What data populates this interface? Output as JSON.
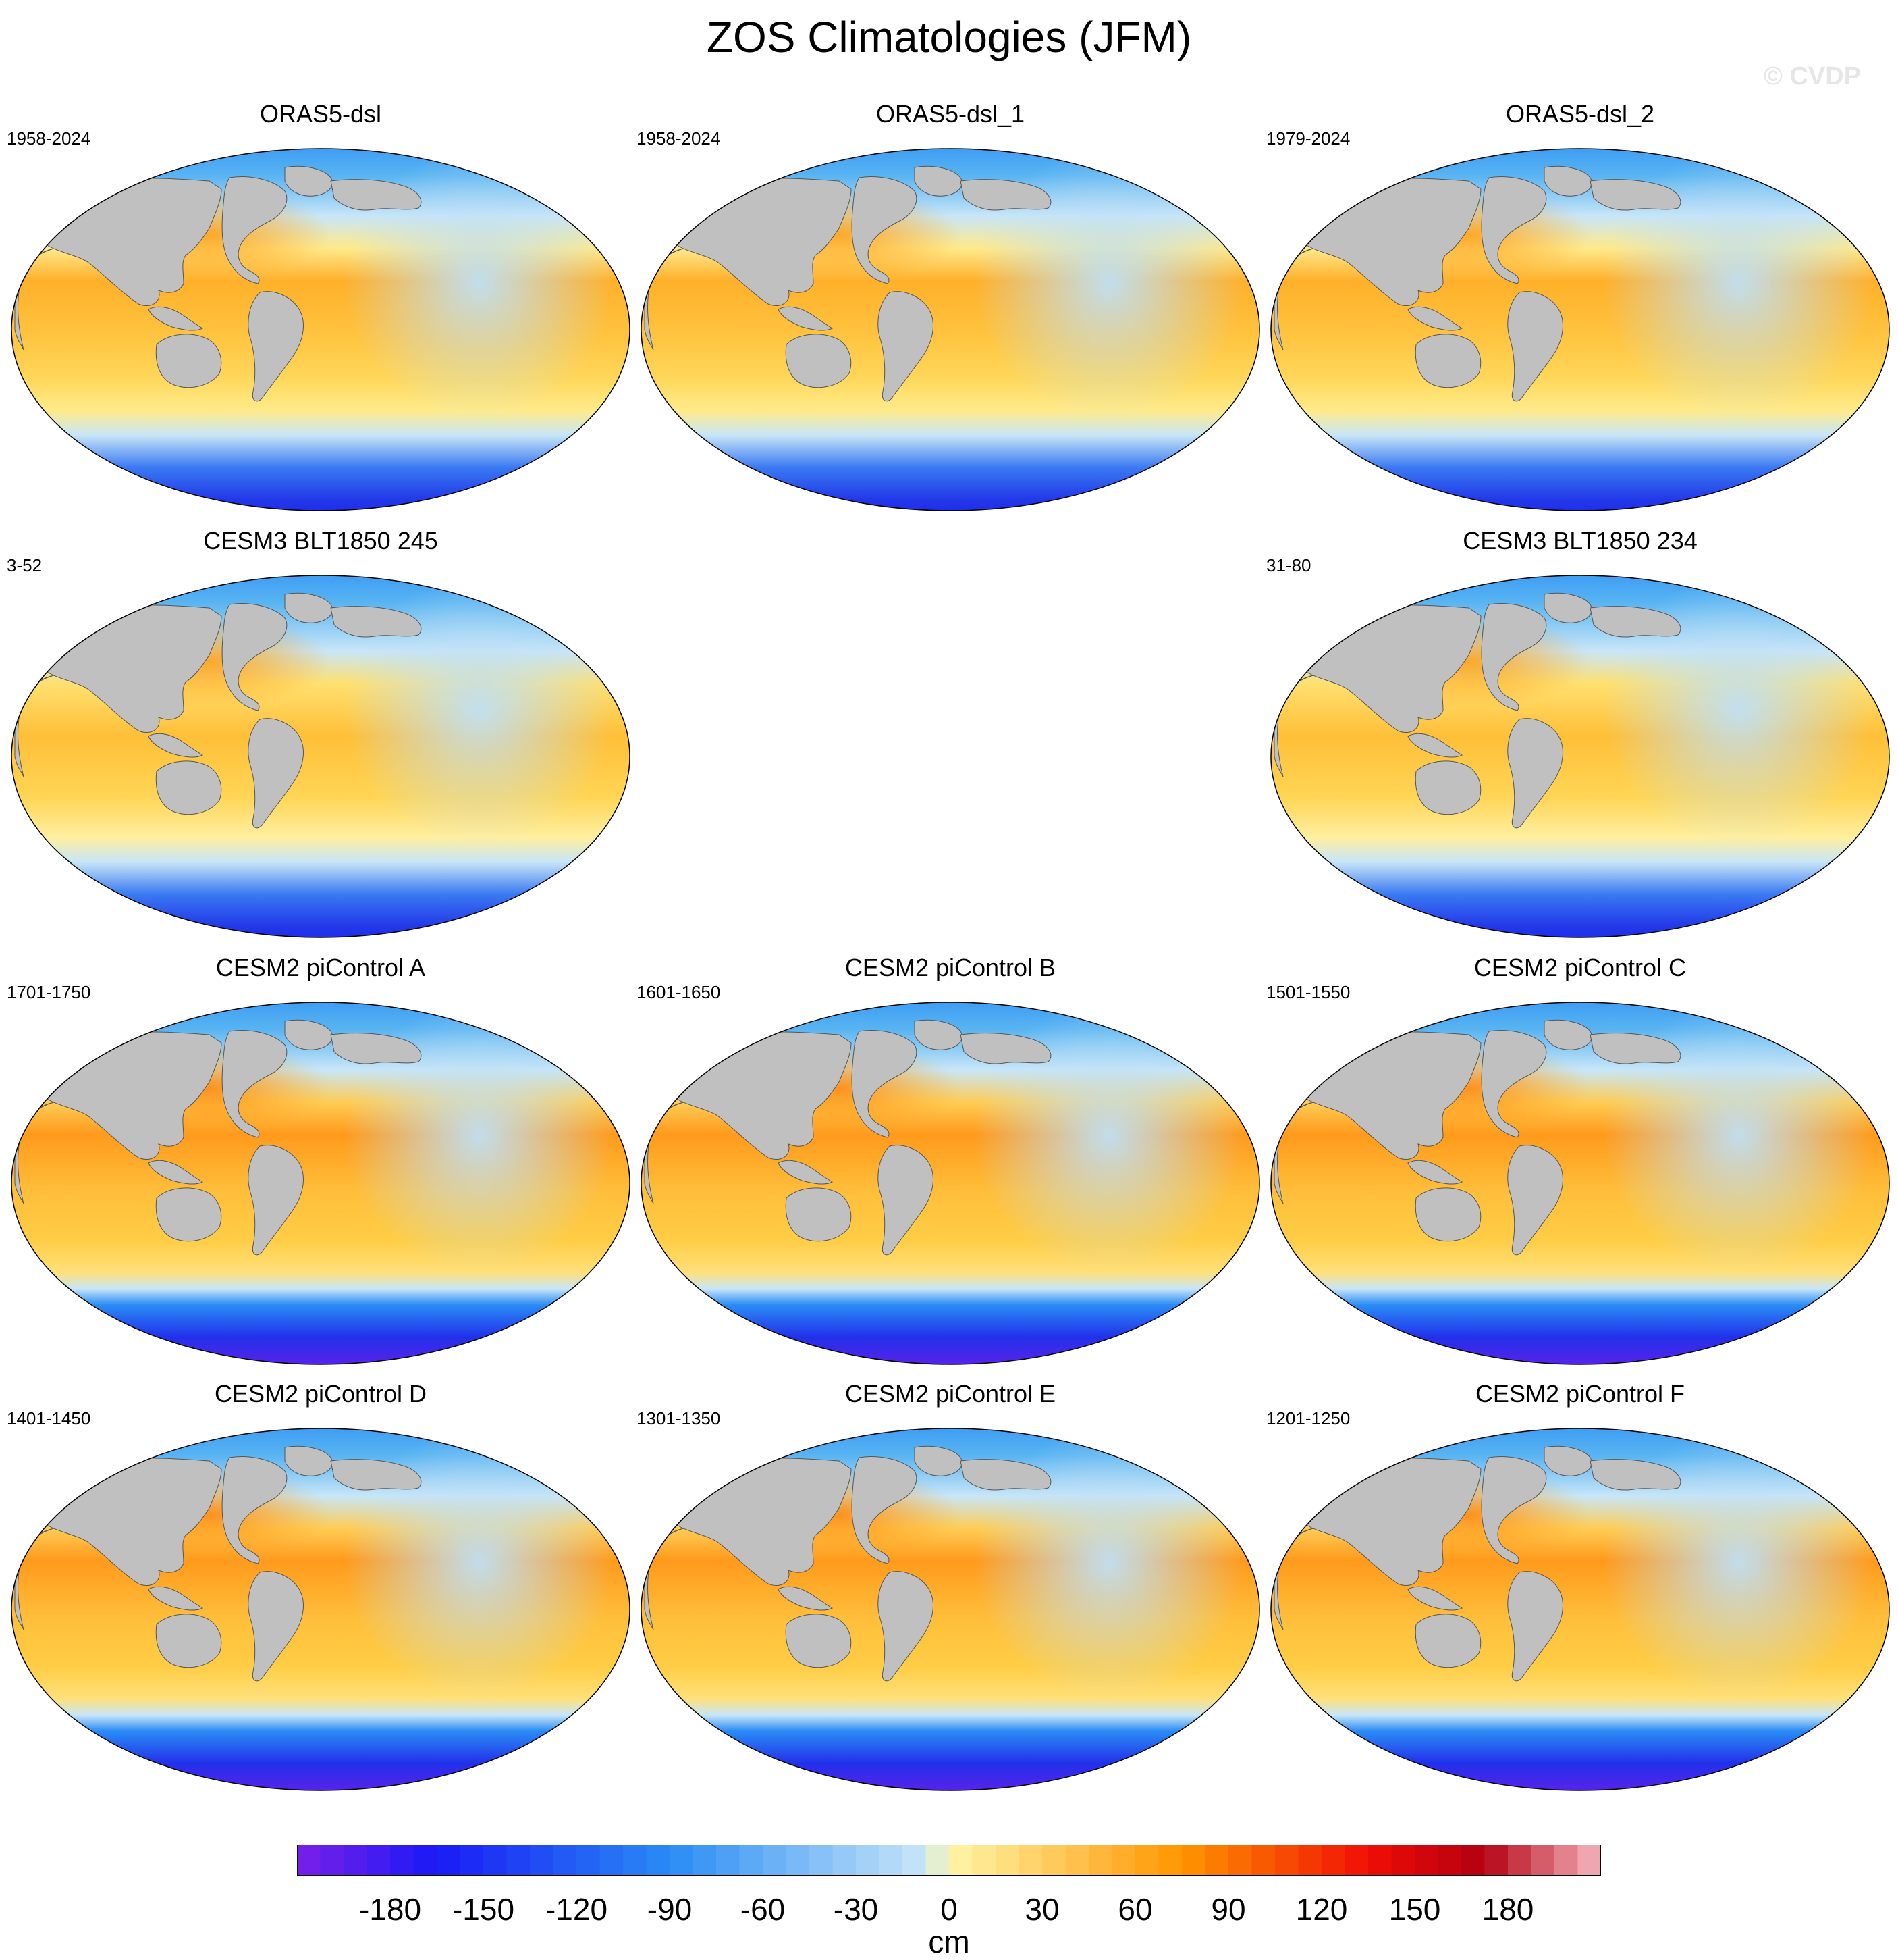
{
  "title": "ZOS Climatologies (JFM)",
  "watermark": "© CVDP",
  "panels": [
    {
      "title": "ORAS5-dsl",
      "years": "1958-2024",
      "variant": "obs"
    },
    {
      "title": "ORAS5-dsl_1",
      "years": "1958-2024",
      "variant": "obs"
    },
    {
      "title": "ORAS5-dsl_2",
      "years": "1979-2024",
      "variant": "obs"
    },
    {
      "title": "CESM3 BLT1850 245",
      "years": "3-52",
      "variant": "cesm3"
    },
    {
      "title": "CESM3 BLT1850 234",
      "years": "31-80",
      "variant": "cesm3"
    },
    {
      "title": "CESM2 piControl A",
      "years": "1701-1750",
      "variant": "cesm2"
    },
    {
      "title": "CESM2 piControl B",
      "years": "1601-1650",
      "variant": "cesm2"
    },
    {
      "title": "CESM2 piControl C",
      "years": "1501-1550",
      "variant": "cesm2"
    },
    {
      "title": "CESM2 piControl D",
      "years": "1401-1450",
      "variant": "cesm2"
    },
    {
      "title": "CESM2 piControl E",
      "years": "1301-1350",
      "variant": "cesm2"
    },
    {
      "title": "CESM2 piControl F",
      "years": "1201-1250",
      "variant": "cesm2"
    }
  ],
  "colorbar": {
    "units": "cm",
    "min": -210,
    "max": 210,
    "step": 7.5,
    "labels": [
      "-180",
      "-150",
      "-120",
      "-90",
      "-60",
      "-30",
      "0",
      "30",
      "60",
      "90",
      "120",
      "150",
      "180"
    ],
    "colors": {
      "lowest": "#7a1fe8",
      "deep_blue": "#1a1af5",
      "mid_blue": "#2a8cf5",
      "light_blue": "#c8e6f8",
      "pale_yellow": "#fff6a8",
      "orange": "#ff9500",
      "red": "#f00d05",
      "dark_red": "#b30012",
      "highest": "#f7b8c0"
    }
  },
  "map_colors": {
    "land": "#c0c0c0",
    "antarctica": "#ffffff"
  }
}
